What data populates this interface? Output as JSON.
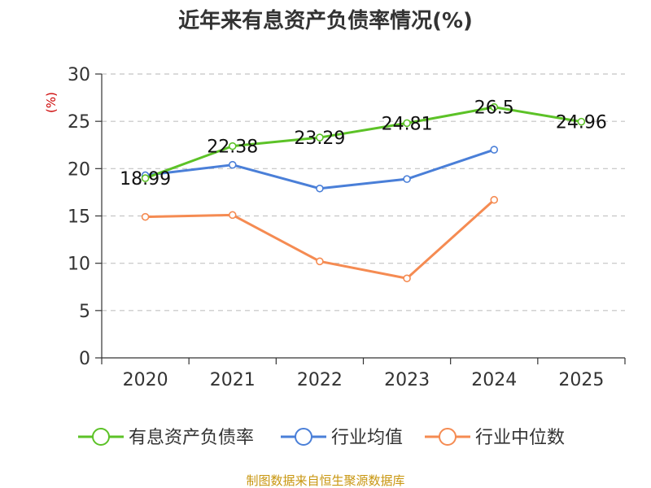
{
  "chart_data": {
    "type": "line",
    "title": "近年来有息资产负债率情况(%)",
    "ylabel": "(%)",
    "categories": [
      "2020",
      "2021",
      "2022",
      "2023",
      "2024",
      "2025"
    ],
    "ylim": [
      0,
      30
    ],
    "yticks": [
      0,
      5,
      10,
      15,
      20,
      25,
      30
    ],
    "grid": true,
    "legend_position": "bottom",
    "series": [
      {
        "name": "有息资产负债率",
        "color": "#5cc227",
        "values": [
          18.99,
          22.38,
          23.29,
          24.81,
          26.5,
          24.96
        ],
        "labels": [
          "18.99",
          "22.38",
          "23.29",
          "24.81",
          "26.5",
          "24.96"
        ]
      },
      {
        "name": "行业均值",
        "color": "#4a7fd8",
        "values": [
          19.3,
          20.4,
          17.9,
          18.9,
          22.0,
          null
        ]
      },
      {
        "name": "行业中位数",
        "color": "#f58b52",
        "values": [
          14.9,
          15.1,
          10.2,
          8.4,
          16.7,
          null
        ]
      }
    ]
  },
  "source": "制图数据来自恒生聚源数据库"
}
